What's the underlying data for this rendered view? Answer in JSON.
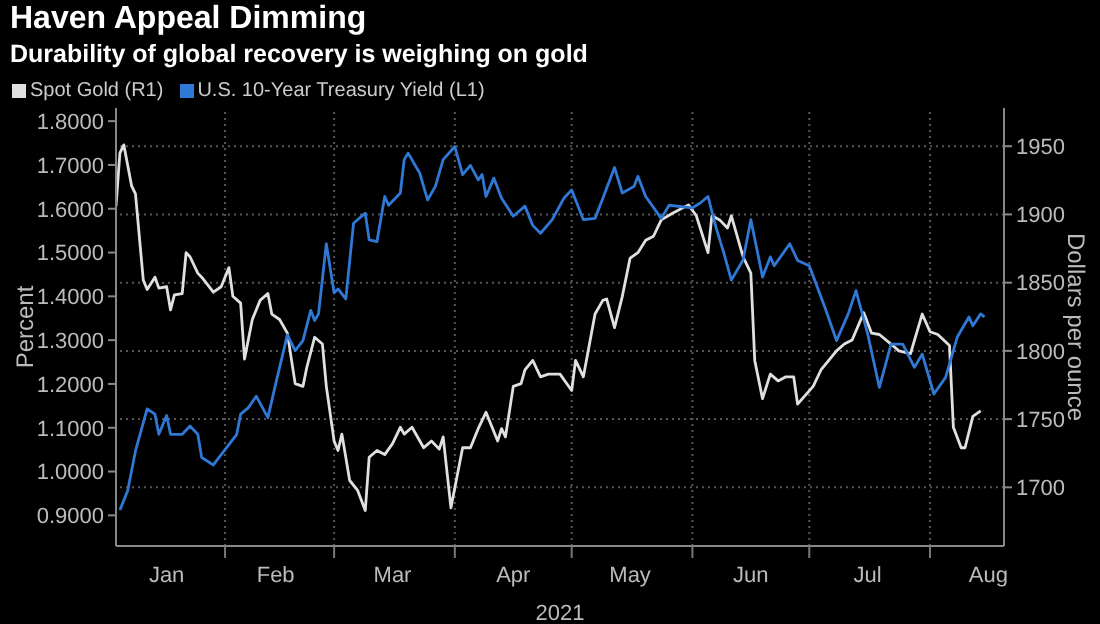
{
  "chart_data": {
    "type": "line",
    "title": "Haven Appeal Dimming",
    "subtitle": "Durability of global recovery is weighing on gold",
    "xlabel": "2021",
    "ylabel": "Percent",
    "y2label": "Dollars per ounce",
    "legend": "top left",
    "grid": true,
    "xlim": [
      "2021-01-04",
      "2021-08-20"
    ],
    "xticks": [
      {
        "value": "2021-01-17",
        "label": "Jan"
      },
      {
        "value": "2021-02-01",
        "label": null
      },
      {
        "value": "2021-02-14",
        "label": "Feb"
      },
      {
        "value": "2021-03-01",
        "label": null
      },
      {
        "value": "2021-03-16",
        "label": "Mar"
      },
      {
        "value": "2021-04-01",
        "label": null
      },
      {
        "value": "2021-04-16",
        "label": "Apr"
      },
      {
        "value": "2021-05-01",
        "label": null
      },
      {
        "value": "2021-05-16",
        "label": "May"
      },
      {
        "value": "2021-06-01",
        "label": null
      },
      {
        "value": "2021-06-16",
        "label": "Jun"
      },
      {
        "value": "2021-07-01",
        "label": null
      },
      {
        "value": "2021-07-16",
        "label": "Jul"
      },
      {
        "value": "2021-08-01",
        "label": null
      },
      {
        "value": "2021-08-16",
        "label": "Aug"
      }
    ],
    "ylim": [
      0.83,
      1.83
    ],
    "yticks": [
      {
        "value": 0.9,
        "label": "0.9000"
      },
      {
        "value": 1.0,
        "label": "1.0000"
      },
      {
        "value": 1.1,
        "label": "1.1000"
      },
      {
        "value": 1.2,
        "label": "1.2000"
      },
      {
        "value": 1.3,
        "label": "1.3000"
      },
      {
        "value": 1.4,
        "label": "1.4000"
      },
      {
        "value": 1.5,
        "label": "1.5000"
      },
      {
        "value": 1.6,
        "label": "1.6000"
      },
      {
        "value": 1.7,
        "label": "1.7000"
      },
      {
        "value": 1.8,
        "label": "1.8000"
      }
    ],
    "y2lim": [
      1657,
      1978
    ],
    "y2ticks": [
      1700,
      1750,
      1800,
      1850,
      1900,
      1950
    ],
    "series": [
      {
        "name": "Spot Gold (R1)",
        "color": "#e0e0e0",
        "axis": "y2",
        "x": [
          "2021-01-04",
          "2021-01-05",
          "2021-01-06",
          "2021-01-08",
          "2021-01-09",
          "2021-01-11",
          "2021-01-12",
          "2021-01-14",
          "2021-01-15",
          "2021-01-17",
          "2021-01-18",
          "2021-01-19",
          "2021-01-21",
          "2021-01-22",
          "2021-01-23",
          "2021-01-25",
          "2021-01-26",
          "2021-01-29",
          "2021-01-31",
          "2021-02-02",
          "2021-02-03",
          "2021-02-05",
          "2021-02-06",
          "2021-02-08",
          "2021-02-10",
          "2021-02-12",
          "2021-02-13",
          "2021-02-15",
          "2021-02-17",
          "2021-02-19",
          "2021-02-21",
          "2021-02-22",
          "2021-02-24",
          "2021-02-26",
          "2021-02-27",
          "2021-03-01",
          "2021-03-02",
          "2021-03-03",
          "2021-03-05",
          "2021-03-07",
          "2021-03-09",
          "2021-03-10",
          "2021-03-12",
          "2021-03-14",
          "2021-03-16",
          "2021-03-18",
          "2021-03-19",
          "2021-03-21",
          "2021-03-24",
          "2021-03-26",
          "2021-03-28",
          "2021-03-29",
          "2021-03-31",
          "2021-04-03",
          "2021-04-05",
          "2021-04-07",
          "2021-04-09",
          "2021-04-12",
          "2021-04-13",
          "2021-04-14",
          "2021-04-16",
          "2021-04-18",
          "2021-04-19",
          "2021-04-21",
          "2021-04-23",
          "2021-04-25",
          "2021-04-28",
          "2021-05-01",
          "2021-05-02",
          "2021-05-04",
          "2021-05-07",
          "2021-05-09",
          "2021-05-10",
          "2021-05-12",
          "2021-05-14",
          "2021-05-16",
          "2021-05-18",
          "2021-05-20",
          "2021-05-22",
          "2021-05-24",
          "2021-05-27",
          "2021-05-31",
          "2021-06-02",
          "2021-06-05",
          "2021-06-06",
          "2021-06-08",
          "2021-06-10",
          "2021-06-11",
          "2021-06-14",
          "2021-06-16",
          "2021-06-17",
          "2021-06-19",
          "2021-06-21",
          "2021-06-23",
          "2021-06-25",
          "2021-06-27",
          "2021-06-28",
          "2021-07-02",
          "2021-07-04",
          "2021-07-08",
          "2021-07-10",
          "2021-07-12",
          "2021-07-15",
          "2021-07-17",
          "2021-07-19",
          "2021-07-22",
          "2021-07-24",
          "2021-07-27",
          "2021-07-30",
          "2021-08-01",
          "2021-08-03",
          "2021-08-06",
          "2021-08-07",
          "2021-08-09",
          "2021-08-10",
          "2021-08-12",
          "2021-08-14"
        ],
        "values": [
          1906,
          1945,
          1951,
          1921,
          1915,
          1852,
          1845,
          1854,
          1846,
          1847,
          1830,
          1841,
          1842,
          1872,
          1869,
          1857,
          1854,
          1843,
          1847,
          1861,
          1840,
          1835,
          1794,
          1823,
          1837,
          1842,
          1827,
          1823,
          1813,
          1776,
          1774,
          1788,
          1810,
          1805,
          1774,
          1734,
          1727,
          1739,
          1705,
          1698,
          1683,
          1722,
          1727,
          1724,
          1732,
          1744,
          1739,
          1744,
          1729,
          1734,
          1728,
          1737,
          1685,
          1729,
          1729,
          1743,
          1755,
          1734,
          1743,
          1737,
          1774,
          1776,
          1786,
          1793,
          1781,
          1783,
          1783,
          1771,
          1793,
          1781,
          1827,
          1837,
          1838,
          1817,
          1840,
          1868,
          1872,
          1881,
          1884,
          1896,
          1901,
          1907,
          1899,
          1872,
          1899,
          1896,
          1890,
          1899,
          1869,
          1857,
          1793,
          1765,
          1783,
          1778,
          1781,
          1781,
          1761,
          1774,
          1786,
          1800,
          1805,
          1808,
          1828,
          1813,
          1812,
          1805,
          1800,
          1798,
          1827,
          1814,
          1812,
          1804,
          1744,
          1729,
          1729,
          1752,
          1756
        ]
      },
      {
        "name": "U.S. 10-Year Treasury Yield (L1)",
        "color": "#2f78d6",
        "axis": "y",
        "x": [
          "2021-01-05",
          "2021-01-07",
          "2021-01-09",
          "2021-01-12",
          "2021-01-14",
          "2021-01-15",
          "2021-01-17",
          "2021-01-18",
          "2021-01-21",
          "2021-01-23",
          "2021-01-25",
          "2021-01-26",
          "2021-01-29",
          "2021-02-01",
          "2021-02-04",
          "2021-02-05",
          "2021-02-07",
          "2021-02-09",
          "2021-02-12",
          "2021-02-14",
          "2021-02-17",
          "2021-02-19",
          "2021-02-21",
          "2021-02-23",
          "2021-02-24",
          "2021-02-25",
          "2021-02-27",
          "2021-03-01",
          "2021-03-02",
          "2021-03-04",
          "2021-03-06",
          "2021-03-09",
          "2021-03-10",
          "2021-03-12",
          "2021-03-14",
          "2021-03-15",
          "2021-03-18",
          "2021-03-19",
          "2021-03-20",
          "2021-03-23",
          "2021-03-25",
          "2021-03-27",
          "2021-03-29",
          "2021-04-01",
          "2021-04-03",
          "2021-04-05",
          "2021-04-07",
          "2021-04-08",
          "2021-04-09",
          "2021-04-11",
          "2021-04-13",
          "2021-04-16",
          "2021-04-19",
          "2021-04-21",
          "2021-04-23",
          "2021-04-26",
          "2021-04-29",
          "2021-05-01",
          "2021-05-04",
          "2021-05-07",
          "2021-05-09",
          "2021-05-12",
          "2021-05-14",
          "2021-05-17",
          "2021-05-18",
          "2021-05-20",
          "2021-05-24",
          "2021-05-26",
          "2021-06-01",
          "2021-06-03",
          "2021-06-05",
          "2021-06-07",
          "2021-06-09",
          "2021-06-11",
          "2021-06-14",
          "2021-06-16",
          "2021-06-19",
          "2021-06-21",
          "2021-06-22",
          "2021-06-26",
          "2021-06-28",
          "2021-07-01",
          "2021-07-05",
          "2021-07-08",
          "2021-07-11",
          "2021-07-13",
          "2021-07-16",
          "2021-07-19",
          "2021-07-22",
          "2021-07-25",
          "2021-07-28",
          "2021-07-30",
          "2021-08-02",
          "2021-08-05",
          "2021-08-08",
          "2021-08-11",
          "2021-08-12",
          "2021-08-14",
          "2021-08-15"
        ],
        "values": [
          0.912,
          0.956,
          1.047,
          1.143,
          1.131,
          1.085,
          1.128,
          1.085,
          1.085,
          1.104,
          1.085,
          1.032,
          1.015,
          1.05,
          1.085,
          1.131,
          1.146,
          1.172,
          1.123,
          1.2,
          1.312,
          1.276,
          1.299,
          1.368,
          1.345,
          1.36,
          1.52,
          1.408,
          1.417,
          1.394,
          1.567,
          1.59,
          1.529,
          1.525,
          1.628,
          1.608,
          1.636,
          1.712,
          1.727,
          1.681,
          1.62,
          1.651,
          1.712,
          1.742,
          1.678,
          1.699,
          1.666,
          1.678,
          1.628,
          1.67,
          1.624,
          1.583,
          1.606,
          1.562,
          1.544,
          1.575,
          1.624,
          1.643,
          1.575,
          1.578,
          1.624,
          1.694,
          1.636,
          1.651,
          1.674,
          1.628,
          1.578,
          1.608,
          1.602,
          1.613,
          1.628,
          1.559,
          1.501,
          1.437,
          1.483,
          1.575,
          1.444,
          1.49,
          1.47,
          1.52,
          1.482,
          1.47,
          1.375,
          1.299,
          1.36,
          1.413,
          1.314,
          1.192,
          1.291,
          1.291,
          1.238,
          1.268,
          1.177,
          1.215,
          1.307,
          1.353,
          1.333,
          1.36,
          1.353
        ]
      }
    ]
  }
}
